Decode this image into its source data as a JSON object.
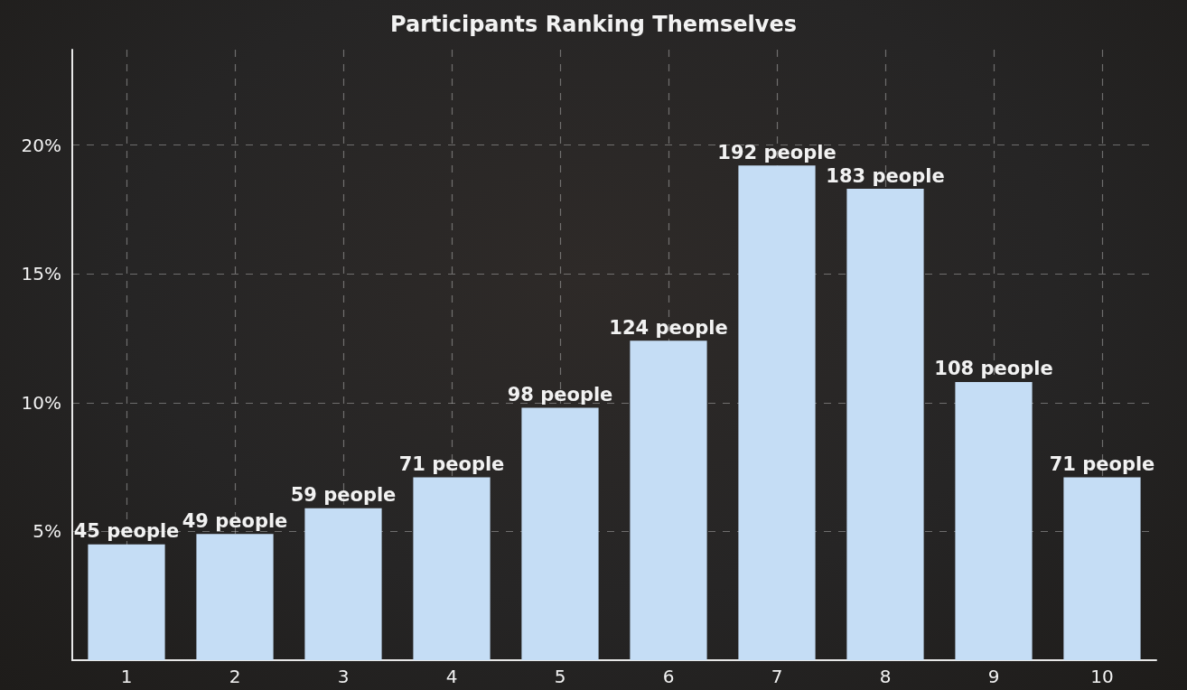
{
  "chart_data": {
    "type": "bar",
    "title": "Participants Ranking Themselves",
    "categories": [
      "1",
      "2",
      "3",
      "4",
      "5",
      "6",
      "7",
      "8",
      "9",
      "10"
    ],
    "values": [
      4.5,
      4.9,
      5.9,
      7.1,
      9.8,
      12.4,
      19.2,
      18.3,
      10.8,
      7.1
    ],
    "annotations": [
      {
        "text": "45 people",
        "x": "1",
        "y": 4.5
      },
      {
        "text": "49 people",
        "x": "2",
        "y": 4.9
      },
      {
        "text": "59 people",
        "x": "3",
        "y": 5.9
      },
      {
        "text": "71 people",
        "x": "4",
        "y": 7.1
      },
      {
        "text": "98 people",
        "x": "5",
        "y": 9.8
      },
      {
        "text": "124 people",
        "x": "6",
        "y": 12.4
      },
      {
        "text": "192 people",
        "x": "7",
        "y": 19.2
      },
      {
        "text": "183 people",
        "x": "8",
        "y": 18.3
      },
      {
        "text": "108 people",
        "x": "9",
        "y": 10.8
      },
      {
        "text": "71 people",
        "x": "10",
        "y": 7.1
      }
    ],
    "color": "#c5ddf5",
    "ylim": [
      0,
      23.7
    ],
    "yticks": [
      {
        "value": 5,
        "label": "5%"
      },
      {
        "value": 10,
        "label": "10%"
      },
      {
        "value": 15,
        "label": "15%"
      },
      {
        "value": 20,
        "label": "20%"
      }
    ],
    "grid": true
  }
}
